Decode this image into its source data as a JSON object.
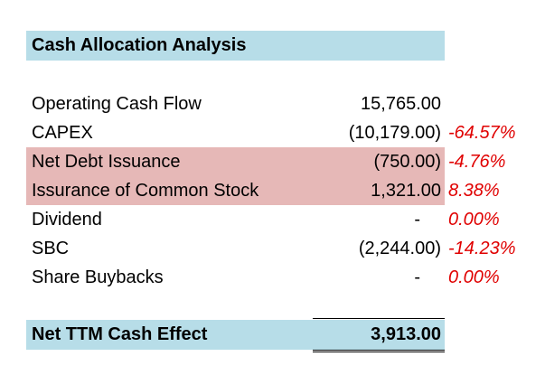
{
  "colors": {
    "header_fill": "#b7dde8",
    "highlight_fill": "#e6b8b7",
    "negative_pct": "#e00000"
  },
  "title": "Cash Allocation Analysis",
  "rows": [
    {
      "label": "Operating Cash Flow",
      "value": "15,765.00",
      "pct": ""
    },
    {
      "label": "CAPEX",
      "value": "(10,179.00)",
      "pct": "-64.57%"
    },
    {
      "label": "Net Debt Issuance",
      "value": "(750.00)",
      "pct": "-4.76%"
    },
    {
      "label": "Issurance of Common Stock",
      "value": "1,321.00",
      "pct": "8.38%"
    },
    {
      "label": "Dividend",
      "value": "-",
      "pct": "0.00%"
    },
    {
      "label": "SBC",
      "value": "(2,244.00)",
      "pct": "-14.23%"
    },
    {
      "label": "Share Buybacks",
      "value": "-",
      "pct": "0.00%"
    }
  ],
  "total": {
    "label": "Net TTM Cash Effect",
    "value": "3,913.00"
  }
}
